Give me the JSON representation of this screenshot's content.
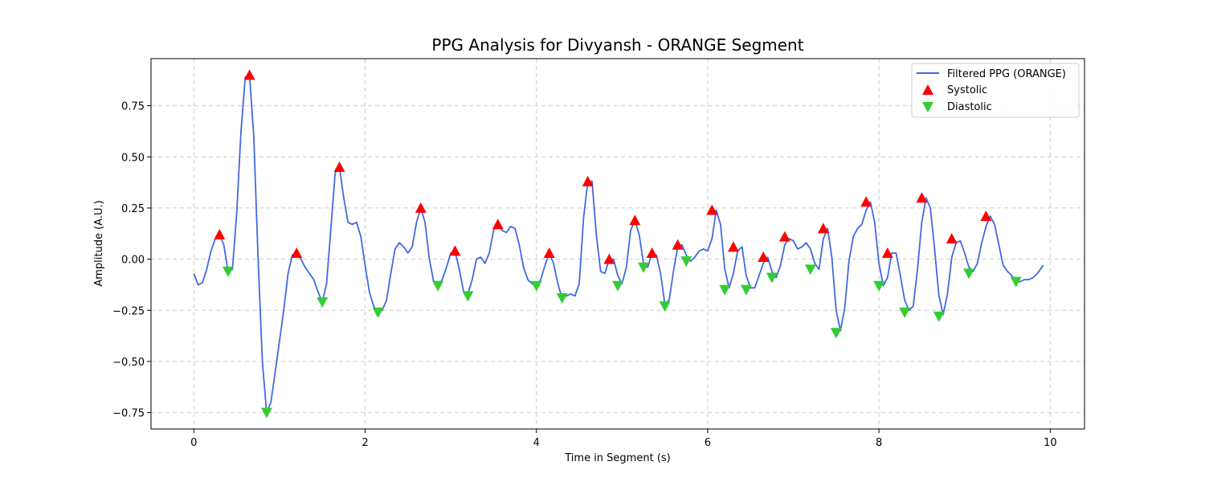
{
  "chart_data": {
    "type": "line",
    "title": "PPG Analysis for Divyansh - ORANGE Segment",
    "xlabel": "Time in Segment (s)",
    "ylabel": "Amplitude (A.U.)",
    "xlim": [
      -0.5,
      10.4
    ],
    "ylim": [
      -0.83,
      0.98
    ],
    "xticks": [
      0,
      2,
      4,
      6,
      8,
      10
    ],
    "yticks": [
      -0.75,
      -0.5,
      -0.25,
      0.0,
      0.25,
      0.5,
      0.75
    ],
    "xtick_labels": [
      "0",
      "2",
      "4",
      "6",
      "8",
      "10"
    ],
    "ytick_labels": [
      "−0.75",
      "−0.50",
      "−0.25",
      "0.00",
      "0.25",
      "0.50",
      "0.75"
    ],
    "grid": true,
    "legend_position": "top-right",
    "colors": {
      "line": "#4169e1",
      "systolic": "#ff0000",
      "diastolic": "#32cd32",
      "grid": "#cccccc"
    },
    "series": [
      {
        "name": "Filtered PPG (ORANGE)",
        "kind": "line",
        "points": [
          [
            0.0,
            -0.07
          ],
          [
            0.05,
            -0.125
          ],
          [
            0.1,
            -0.115
          ],
          [
            0.15,
            -0.05
          ],
          [
            0.2,
            0.04
          ],
          [
            0.25,
            0.1
          ],
          [
            0.3,
            0.12
          ],
          [
            0.35,
            0.07
          ],
          [
            0.4,
            -0.06
          ],
          [
            0.45,
            -0.05
          ],
          [
            0.5,
            0.22
          ],
          [
            0.55,
            0.62
          ],
          [
            0.6,
            0.89
          ],
          [
            0.65,
            0.9
          ],
          [
            0.7,
            0.6
          ],
          [
            0.75,
            0.0
          ],
          [
            0.8,
            -0.5
          ],
          [
            0.85,
            -0.75
          ],
          [
            0.9,
            -0.7
          ],
          [
            0.95,
            -0.55
          ],
          [
            1.0,
            -0.4
          ],
          [
            1.05,
            -0.25
          ],
          [
            1.1,
            -0.07
          ],
          [
            1.15,
            0.02
          ],
          [
            1.2,
            0.03
          ],
          [
            1.25,
            0.0
          ],
          [
            1.3,
            -0.04
          ],
          [
            1.35,
            -0.07
          ],
          [
            1.4,
            -0.1
          ],
          [
            1.45,
            -0.16
          ],
          [
            1.5,
            -0.21
          ],
          [
            1.55,
            -0.12
          ],
          [
            1.6,
            0.15
          ],
          [
            1.65,
            0.42
          ],
          [
            1.7,
            0.45
          ],
          [
            1.75,
            0.3
          ],
          [
            1.8,
            0.18
          ],
          [
            1.85,
            0.17
          ],
          [
            1.9,
            0.18
          ],
          [
            1.95,
            0.11
          ],
          [
            2.0,
            -0.03
          ],
          [
            2.05,
            -0.16
          ],
          [
            2.1,
            -0.23
          ],
          [
            2.15,
            -0.26
          ],
          [
            2.2,
            -0.25
          ],
          [
            2.25,
            -0.2
          ],
          [
            2.3,
            -0.07
          ],
          [
            2.35,
            0.05
          ],
          [
            2.4,
            0.08
          ],
          [
            2.45,
            0.06
          ],
          [
            2.5,
            0.03
          ],
          [
            2.55,
            0.06
          ],
          [
            2.6,
            0.18
          ],
          [
            2.65,
            0.25
          ],
          [
            2.7,
            0.18
          ],
          [
            2.75,
            0.0
          ],
          [
            2.8,
            -0.11
          ],
          [
            2.85,
            -0.13
          ],
          [
            2.9,
            -0.1
          ],
          [
            2.95,
            -0.04
          ],
          [
            3.0,
            0.03
          ],
          [
            3.05,
            0.04
          ],
          [
            3.1,
            -0.05
          ],
          [
            3.15,
            -0.16
          ],
          [
            3.2,
            -0.17
          ],
          [
            3.25,
            -0.1
          ],
          [
            3.3,
            0.0
          ],
          [
            3.35,
            0.01
          ],
          [
            3.4,
            -0.02
          ],
          [
            3.45,
            0.03
          ],
          [
            3.5,
            0.14
          ],
          [
            3.55,
            0.17
          ],
          [
            3.6,
            0.14
          ],
          [
            3.65,
            0.13
          ],
          [
            3.7,
            0.16
          ],
          [
            3.75,
            0.15
          ],
          [
            3.8,
            0.07
          ],
          [
            3.85,
            -0.04
          ],
          [
            3.9,
            -0.1
          ],
          [
            3.95,
            -0.12
          ],
          [
            4.0,
            -0.13
          ],
          [
            4.05,
            -0.1
          ],
          [
            4.1,
            -0.03
          ],
          [
            4.15,
            0.03
          ],
          [
            4.2,
            -0.02
          ],
          [
            4.25,
            -0.12
          ],
          [
            4.3,
            -0.19
          ],
          [
            4.35,
            -0.18
          ],
          [
            4.4,
            -0.17
          ],
          [
            4.45,
            -0.18
          ],
          [
            4.5,
            -0.12
          ],
          [
            4.55,
            0.2
          ],
          [
            4.6,
            0.38
          ],
          [
            4.65,
            0.38
          ],
          [
            4.7,
            0.12
          ],
          [
            4.75,
            -0.06
          ],
          [
            4.8,
            -0.07
          ],
          [
            4.85,
            0.0
          ],
          [
            4.9,
            0.0
          ],
          [
            4.95,
            -0.08
          ],
          [
            5.0,
            -0.12
          ],
          [
            5.05,
            -0.04
          ],
          [
            5.1,
            0.14
          ],
          [
            5.15,
            0.19
          ],
          [
            5.2,
            0.12
          ],
          [
            5.25,
            -0.02
          ],
          [
            5.3,
            -0.04
          ],
          [
            5.35,
            0.03
          ],
          [
            5.4,
            0.02
          ],
          [
            5.45,
            -0.07
          ],
          [
            5.5,
            -0.22
          ],
          [
            5.55,
            -0.2
          ],
          [
            5.6,
            -0.06
          ],
          [
            5.65,
            0.06
          ],
          [
            5.7,
            0.07
          ],
          [
            5.75,
            0.02
          ],
          [
            5.8,
            -0.01
          ],
          [
            5.85,
            0.01
          ],
          [
            5.9,
            0.04
          ],
          [
            5.95,
            0.05
          ],
          [
            6.0,
            0.04
          ],
          [
            6.05,
            0.1
          ],
          [
            6.1,
            0.24
          ],
          [
            6.15,
            0.17
          ],
          [
            6.2,
            -0.05
          ],
          [
            6.25,
            -0.14
          ],
          [
            6.3,
            -0.07
          ],
          [
            6.35,
            0.04
          ],
          [
            6.4,
            0.06
          ],
          [
            6.45,
            -0.08
          ],
          [
            6.5,
            -0.14
          ],
          [
            6.55,
            -0.14
          ],
          [
            6.6,
            -0.08
          ],
          [
            6.65,
            -0.02
          ],
          [
            6.7,
            0.01
          ],
          [
            6.75,
            -0.06
          ],
          [
            6.8,
            -0.09
          ],
          [
            6.85,
            -0.03
          ],
          [
            6.9,
            0.07
          ],
          [
            6.95,
            0.1
          ],
          [
            7.0,
            0.09
          ],
          [
            7.05,
            0.05
          ],
          [
            7.1,
            0.06
          ],
          [
            7.15,
            0.08
          ],
          [
            7.2,
            0.05
          ],
          [
            7.25,
            -0.02
          ],
          [
            7.3,
            -0.05
          ],
          [
            7.35,
            0.1
          ],
          [
            7.4,
            0.15
          ],
          [
            7.45,
            0.01
          ],
          [
            7.5,
            -0.25
          ],
          [
            7.55,
            -0.35
          ],
          [
            7.6,
            -0.24
          ],
          [
            7.65,
            -0.01
          ],
          [
            7.7,
            0.11
          ],
          [
            7.75,
            0.15
          ],
          [
            7.8,
            0.17
          ],
          [
            7.85,
            0.24
          ],
          [
            7.9,
            0.28
          ],
          [
            7.95,
            0.18
          ],
          [
            8.0,
            -0.02
          ],
          [
            8.05,
            -0.13
          ],
          [
            8.1,
            -0.09
          ],
          [
            8.15,
            0.03
          ],
          [
            8.2,
            0.03
          ],
          [
            8.25,
            -0.08
          ],
          [
            8.3,
            -0.2
          ],
          [
            8.35,
            -0.25
          ],
          [
            8.4,
            -0.23
          ],
          [
            8.45,
            -0.05
          ],
          [
            8.5,
            0.18
          ],
          [
            8.55,
            0.3
          ],
          [
            8.6,
            0.25
          ],
          [
            8.65,
            0.05
          ],
          [
            8.7,
            -0.18
          ],
          [
            8.75,
            -0.27
          ],
          [
            8.8,
            -0.17
          ],
          [
            8.85,
            0.01
          ],
          [
            8.9,
            0.08
          ],
          [
            8.95,
            0.09
          ],
          [
            9.0,
            0.03
          ],
          [
            9.05,
            -0.04
          ],
          [
            9.1,
            -0.06
          ],
          [
            9.15,
            -0.02
          ],
          [
            9.2,
            0.08
          ],
          [
            9.25,
            0.16
          ],
          [
            9.3,
            0.21
          ],
          [
            9.35,
            0.17
          ],
          [
            9.4,
            0.07
          ],
          [
            9.45,
            -0.03
          ],
          [
            9.5,
            -0.06
          ],
          [
            9.55,
            -0.08
          ],
          [
            9.6,
            -0.11
          ],
          [
            9.65,
            -0.11
          ],
          [
            9.7,
            -0.1
          ],
          [
            9.75,
            -0.1
          ],
          [
            9.8,
            -0.09
          ],
          [
            9.85,
            -0.07
          ],
          [
            9.9,
            -0.04
          ],
          [
            9.92,
            -0.03
          ]
        ]
      },
      {
        "name": "Systolic",
        "kind": "marker-up",
        "points": [
          [
            0.3,
            0.12
          ],
          [
            0.65,
            0.9
          ],
          [
            1.2,
            0.03
          ],
          [
            1.7,
            0.45
          ],
          [
            2.65,
            0.25
          ],
          [
            3.05,
            0.04
          ],
          [
            3.55,
            0.17
          ],
          [
            4.15,
            0.03
          ],
          [
            4.6,
            0.38
          ],
          [
            4.85,
            0.0
          ],
          [
            5.15,
            0.19
          ],
          [
            5.35,
            0.03
          ],
          [
            5.65,
            0.07
          ],
          [
            6.05,
            0.24
          ],
          [
            6.3,
            0.06
          ],
          [
            6.65,
            0.01
          ],
          [
            6.9,
            0.11
          ],
          [
            7.35,
            0.15
          ],
          [
            7.85,
            0.28
          ],
          [
            8.1,
            0.03
          ],
          [
            8.5,
            0.3
          ],
          [
            8.85,
            0.1
          ],
          [
            9.25,
            0.21
          ]
        ]
      },
      {
        "name": "Diastolic",
        "kind": "marker-down",
        "points": [
          [
            0.4,
            -0.06
          ],
          [
            0.85,
            -0.75
          ],
          [
            1.5,
            -0.21
          ],
          [
            2.15,
            -0.26
          ],
          [
            2.85,
            -0.13
          ],
          [
            3.2,
            -0.18
          ],
          [
            4.0,
            -0.13
          ],
          [
            4.3,
            -0.19
          ],
          [
            4.95,
            -0.13
          ],
          [
            5.25,
            -0.04
          ],
          [
            5.5,
            -0.23
          ],
          [
            5.75,
            -0.01
          ],
          [
            6.2,
            -0.15
          ],
          [
            6.45,
            -0.15
          ],
          [
            6.75,
            -0.09
          ],
          [
            7.2,
            -0.05
          ],
          [
            7.5,
            -0.36
          ],
          [
            8.0,
            -0.13
          ],
          [
            8.3,
            -0.26
          ],
          [
            8.7,
            -0.28
          ],
          [
            9.05,
            -0.07
          ],
          [
            9.6,
            -0.11
          ]
        ]
      }
    ]
  }
}
